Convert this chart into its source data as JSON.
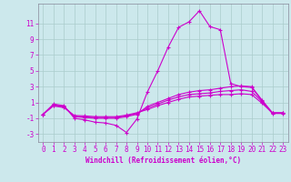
{
  "title": "",
  "xlabel": "Windchill (Refroidissement éolien,°C)",
  "background_color": "#cce8ec",
  "grid_color": "#aacccc",
  "line_color": "#cc00cc",
  "x_data": [
    0,
    1,
    2,
    3,
    4,
    5,
    6,
    7,
    8,
    9,
    10,
    11,
    12,
    13,
    14,
    15,
    16,
    17,
    18,
    19,
    20,
    21,
    22,
    23
  ],
  "line1": [
    -0.5,
    0.8,
    0.6,
    -1.0,
    -1.2,
    -1.5,
    -1.6,
    -1.9,
    -2.8,
    -1.1,
    2.3,
    5.0,
    8.0,
    10.5,
    11.2,
    12.6,
    10.6,
    10.2,
    3.4,
    3.0,
    2.9,
    1.2,
    -0.4,
    -0.4
  ],
  "line2": [
    -0.5,
    0.7,
    0.5,
    -0.8,
    -0.9,
    -1.0,
    -1.0,
    -1.0,
    -0.8,
    -0.5,
    0.5,
    1.0,
    1.5,
    2.0,
    2.3,
    2.5,
    2.6,
    2.8,
    3.0,
    3.1,
    3.0,
    1.3,
    -0.3,
    -0.3
  ],
  "line3": [
    -0.5,
    0.65,
    0.45,
    -0.75,
    -0.85,
    -0.9,
    -0.9,
    -0.9,
    -0.7,
    -0.4,
    0.3,
    0.8,
    1.3,
    1.7,
    2.0,
    2.1,
    2.2,
    2.4,
    2.5,
    2.6,
    2.4,
    1.1,
    -0.35,
    -0.35
  ],
  "line4": [
    -0.5,
    0.55,
    0.35,
    -0.65,
    -0.7,
    -0.8,
    -0.8,
    -0.8,
    -0.6,
    -0.3,
    0.1,
    0.6,
    1.0,
    1.4,
    1.7,
    1.8,
    1.9,
    2.0,
    2.0,
    2.1,
    2.0,
    0.9,
    -0.35,
    -0.35
  ],
  "ylim": [
    -4,
    13.5
  ],
  "xlim": [
    -0.5,
    23.5
  ],
  "yticks": [
    -3,
    -1,
    1,
    3,
    5,
    7,
    9,
    11
  ],
  "xticks": [
    0,
    1,
    2,
    3,
    4,
    5,
    6,
    7,
    8,
    9,
    10,
    11,
    12,
    13,
    14,
    15,
    16,
    17,
    18,
    19,
    20,
    21,
    22,
    23
  ],
  "tick_fontsize": 5.5,
  "xlabel_fontsize": 5.5
}
